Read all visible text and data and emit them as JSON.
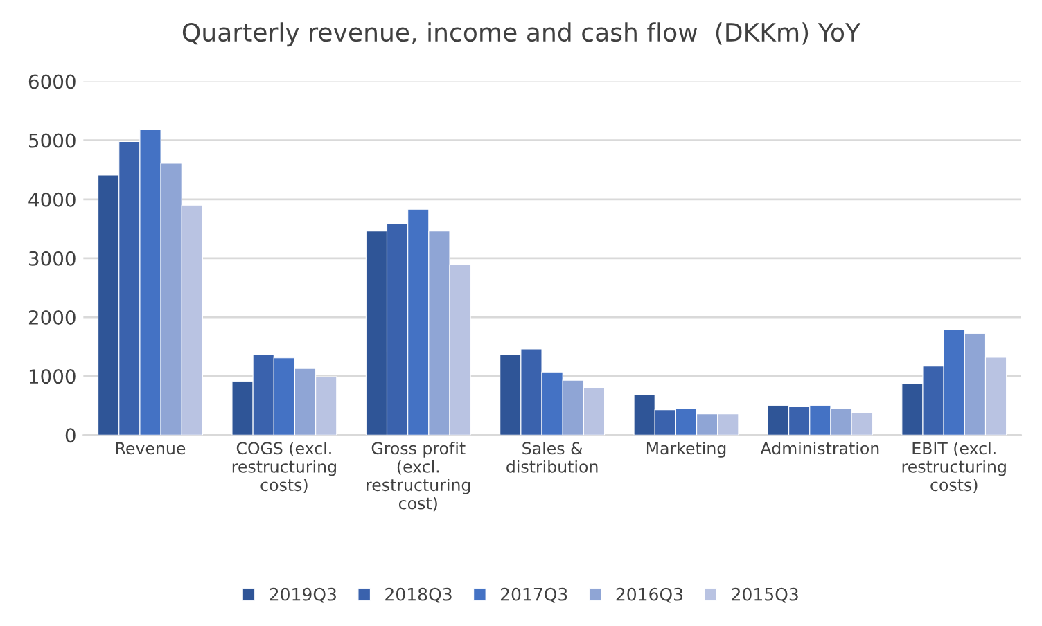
{
  "chart_data": {
    "type": "bar",
    "title": "Quarterly revenue, income and cash flow  (DKKm) YoY",
    "categories": [
      "Revenue",
      "COGS (excl.\nrestructuring\ncosts)",
      "Gross profit\n(excl.\nrestructuring\ncost)",
      "Sales &\ndistribution",
      "Marketing",
      "Administration",
      "EBIT (excl.\nrestructuring\ncosts)"
    ],
    "series": [
      {
        "name": "2019Q3",
        "color": "#2f5597",
        "values": [
          4410,
          910,
          3460,
          1360,
          680,
          500,
          880
        ]
      },
      {
        "name": "2018Q3",
        "color": "#3a62ad",
        "values": [
          4980,
          1360,
          3580,
          1460,
          430,
          480,
          1170
        ]
      },
      {
        "name": "2017Q3",
        "color": "#4472c4",
        "values": [
          5180,
          1310,
          3830,
          1070,
          450,
          500,
          1790
        ]
      },
      {
        "name": "2016Q3",
        "color": "#8fa5d5",
        "values": [
          4610,
          1130,
          3460,
          930,
          360,
          450,
          1720
        ]
      },
      {
        "name": "2015Q3",
        "color": "#b9c3e2",
        "values": [
          3900,
          990,
          2890,
          800,
          360,
          380,
          1320
        ]
      }
    ],
    "ylim": [
      0,
      6000
    ],
    "yticks": [
      0,
      1000,
      2000,
      3000,
      4000,
      5000,
      6000
    ],
    "grid": "y",
    "legend": "bottom"
  }
}
